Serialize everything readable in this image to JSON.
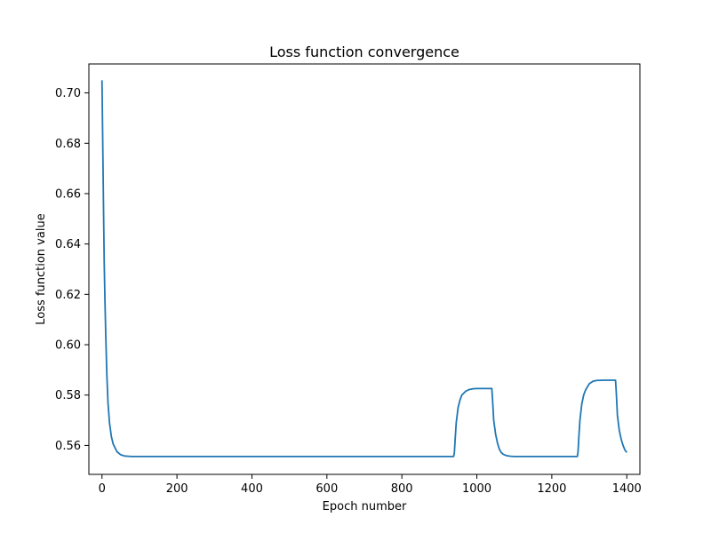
{
  "chart_data": {
    "type": "line",
    "title": "Loss function convergence",
    "xlabel": "Epoch number",
    "ylabel": "Loss function value",
    "xlim": [
      -35,
      1435
    ],
    "ylim": [
      0.5485,
      0.7115
    ],
    "xticks": [
      0,
      200,
      400,
      600,
      800,
      1000,
      1200,
      1400
    ],
    "yticks": [
      0.56,
      0.58,
      0.6,
      0.62,
      0.64,
      0.66,
      0.68,
      0.7
    ],
    "ytick_labels": [
      "0.56",
      "0.58",
      "0.60",
      "0.62",
      "0.64",
      "0.66",
      "0.68",
      "0.70"
    ],
    "grid": false,
    "series": [
      {
        "color": "#1f77b4",
        "x": [
          0,
          2,
          4,
          6,
          8,
          10,
          13,
          16,
          20,
          25,
          30,
          40,
          50,
          60,
          70,
          80,
          100,
          200,
          400,
          600,
          800,
          938,
          940,
          942,
          945,
          950,
          955,
          960,
          970,
          980,
          990,
          1000,
          1010,
          1020,
          1030,
          1040,
          1042,
          1045,
          1050,
          1055,
          1060,
          1065,
          1070,
          1080,
          1090,
          1100,
          1200,
          1268,
          1270,
          1272,
          1275,
          1280,
          1285,
          1290,
          1300,
          1310,
          1320,
          1340,
          1360,
          1370,
          1372,
          1375,
          1380,
          1385,
          1390,
          1395,
          1400
        ],
        "y": [
          0.705,
          0.68,
          0.655,
          0.632,
          0.617,
          0.604,
          0.588,
          0.577,
          0.569,
          0.5635,
          0.5605,
          0.5575,
          0.5563,
          0.5558,
          0.5557,
          0.5556,
          0.5556,
          0.5556,
          0.5556,
          0.5556,
          0.5556,
          0.5556,
          0.557,
          0.562,
          0.569,
          0.575,
          0.578,
          0.58,
          0.5815,
          0.5822,
          0.5825,
          0.5826,
          0.5826,
          0.5826,
          0.5826,
          0.5826,
          0.578,
          0.57,
          0.5645,
          0.561,
          0.5585,
          0.5572,
          0.5565,
          0.5559,
          0.5557,
          0.5556,
          0.5556,
          0.5556,
          0.5575,
          0.563,
          0.57,
          0.5765,
          0.58,
          0.582,
          0.5845,
          0.5855,
          0.5858,
          0.5859,
          0.5859,
          0.5859,
          0.581,
          0.572,
          0.566,
          0.5625,
          0.56,
          0.5582,
          0.5572
        ]
      }
    ]
  }
}
